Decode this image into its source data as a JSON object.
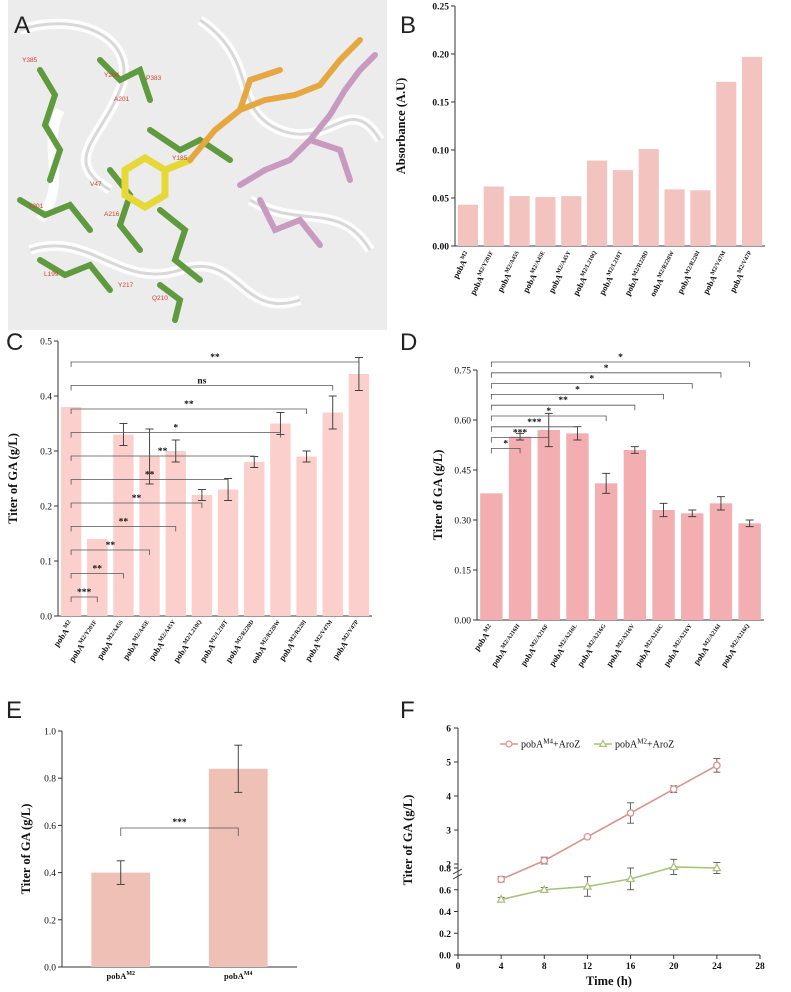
{
  "panels": {
    "A": {
      "label": "A",
      "residues": [
        "Y385",
        "Y204",
        "P383",
        "A201",
        "Y185",
        "V47",
        "Y201",
        "L199",
        "A216",
        "Q210",
        "Y217"
      ]
    },
    "B": {
      "label": "B"
    },
    "C": {
      "label": "C"
    },
    "D": {
      "label": "D"
    },
    "E": {
      "label": "E"
    },
    "F": {
      "label": "F"
    }
  },
  "chart_data": [
    {
      "panel": "B",
      "type": "bar",
      "ylabel": "Absorbance (A.U)",
      "ylim": [
        0,
        0.25
      ],
      "yticks": [
        "0.00",
        "0.05",
        "0.10",
        "0.15",
        "0.20",
        "0.25"
      ],
      "bar_color": "#f2c3bf",
      "categories": [
        {
          "base": "pobA",
          "sup": "M2"
        },
        {
          "base": "pobA",
          "sup": "M2/Y201F"
        },
        {
          "base": "pobA",
          "sup": "M2/A45S"
        },
        {
          "base": "pobA",
          "sup": "M2/A45E"
        },
        {
          "base": "pobA",
          "sup": "M2/A45Y"
        },
        {
          "base": "pobA",
          "sup": "M2/L210Q"
        },
        {
          "base": "pobA",
          "sup": "M2/L210T"
        },
        {
          "base": "pobA",
          "sup": "M2/R220D"
        },
        {
          "base": "oobA",
          "sup": "M2/R220W"
        },
        {
          "base": "pobA",
          "sup": "M2/R220I"
        },
        {
          "base": "pobA",
          "sup": "M2/V47M"
        },
        {
          "base": "pobA",
          "sup": "M2/V47P"
        }
      ],
      "values": [
        0.043,
        0.062,
        0.052,
        0.051,
        0.052,
        0.089,
        0.079,
        0.101,
        0.059,
        0.058,
        0.171,
        0.197
      ]
    },
    {
      "panel": "C",
      "type": "bar",
      "ylabel": "Titer of GA (g/L)",
      "ylim": [
        0,
        0.5
      ],
      "yticks": [
        "0.0",
        "0.1",
        "0.2",
        "0.3",
        "0.4",
        "0.5"
      ],
      "bar_color": "#fbd0cc",
      "categories": [
        {
          "base": "pobA",
          "sup": "M2"
        },
        {
          "base": "pobA",
          "sup": "M2/Y201F"
        },
        {
          "base": "pobA",
          "sup": "M2/A45S"
        },
        {
          "base": "pobA",
          "sup": "M2/A45E"
        },
        {
          "base": "pobA",
          "sup": "M2/A45Y"
        },
        {
          "base": "pobA",
          "sup": "M2/L210Q"
        },
        {
          "base": "pobA",
          "sup": "M2/L210T"
        },
        {
          "base": "pobA",
          "sup": "M2/R220D"
        },
        {
          "base": "oobA",
          "sup": "M2/R220W"
        },
        {
          "base": "pobA",
          "sup": "M2/R220I"
        },
        {
          "base": "pobA",
          "sup": "M2/V47M"
        },
        {
          "base": "pobA",
          "sup": "M2/V47P"
        }
      ],
      "values": [
        0.38,
        0.14,
        0.33,
        0.29,
        0.3,
        0.22,
        0.23,
        0.28,
        0.35,
        0.29,
        0.37,
        0.44
      ],
      "errors": [
        0,
        0,
        0.02,
        0.05,
        0.02,
        0.01,
        0.02,
        0.01,
        0.02,
        0.01,
        0.03,
        0.03
      ],
      "significance": [
        {
          "to": 11,
          "text": "**"
        },
        {
          "to": 10,
          "text": "ns"
        },
        {
          "to": 9,
          "text": "**"
        },
        {
          "to": 8,
          "text": "*"
        },
        {
          "to": 7,
          "text": "**"
        },
        {
          "to": 6,
          "text": "**"
        },
        {
          "to": 5,
          "text": "**"
        },
        {
          "to": 4,
          "text": "**"
        },
        {
          "to": 3,
          "text": "**"
        },
        {
          "to": 2,
          "text": "**"
        },
        {
          "to": 1,
          "text": "***"
        }
      ]
    },
    {
      "panel": "D",
      "type": "bar",
      "ylabel": "Titer of GA (g/L)",
      "ylim": [
        0,
        0.75
      ],
      "yticks": [
        "0.00",
        "0.15",
        "0.30",
        "0.45",
        "0.60",
        "0.75"
      ],
      "bar_color": "#f2aeb0",
      "categories": [
        {
          "base": "pobA",
          "sup": "M2"
        },
        {
          "base": "pobA",
          "sup": "M2/A216H"
        },
        {
          "base": "pobA",
          "sup": "M2/A216F"
        },
        {
          "base": "pobA",
          "sup": "M2/A216L"
        },
        {
          "base": "pobA",
          "sup": "M2/A216G"
        },
        {
          "base": "pobA",
          "sup": "M2/A216V"
        },
        {
          "base": "pobA",
          "sup": "M2/A216C"
        },
        {
          "base": "pobA",
          "sup": "M2/A216Y"
        },
        {
          "base": "pobA",
          "sup": "M2/A216I"
        },
        {
          "base": "pobA",
          "sup": "M2/A216Q"
        }
      ],
      "values": [
        0.38,
        0.55,
        0.57,
        0.56,
        0.41,
        0.51,
        0.33,
        0.32,
        0.35,
        0.29
      ],
      "errors": [
        0,
        0.01,
        0.05,
        0.02,
        0.03,
        0.01,
        0.02,
        0.01,
        0.02,
        0.01
      ],
      "significance": [
        {
          "to": 9,
          "text": "*"
        },
        {
          "to": 8,
          "text": "*"
        },
        {
          "to": 7,
          "text": "*"
        },
        {
          "to": 6,
          "text": "*"
        },
        {
          "to": 5,
          "text": "**"
        },
        {
          "to": 4,
          "text": "*"
        },
        {
          "to": 3,
          "text": "***"
        },
        {
          "to": 2,
          "text": "***"
        },
        {
          "to": 1,
          "text": "*"
        }
      ]
    },
    {
      "panel": "E",
      "type": "bar",
      "ylabel": "Titer of GA (g/L)",
      "ylim": [
        0,
        1.0
      ],
      "yticks": [
        "0.0",
        "0.2",
        "0.4",
        "0.6",
        "0.8",
        "1.0"
      ],
      "bar_color": "#eec0b6",
      "categories": [
        {
          "base": "pobA",
          "sup": "M2"
        },
        {
          "base": "pobA",
          "sup": "M4"
        }
      ],
      "values": [
        0.4,
        0.84
      ],
      "errors": [
        0.05,
        0.1
      ],
      "significance": [
        {
          "from": 0,
          "to": 1,
          "text": "***"
        }
      ]
    },
    {
      "panel": "F",
      "type": "line",
      "xlabel": "Time (h)",
      "ylabel": "Titer of GA (g/L)",
      "xlim": [
        0,
        28
      ],
      "xticks": [
        "0",
        "4",
        "8",
        "12",
        "16",
        "20",
        "24",
        "28"
      ],
      "y_upper_ticks": [
        "2",
        "3",
        "4",
        "5",
        "6"
      ],
      "y_lower_ticks": [
        "0.0",
        "0.2",
        "0.4",
        "0.6",
        "0.8"
      ],
      "axis_break": true,
      "series": [
        {
          "name": "pobA",
          "name_sup": "M4",
          "name_suffix": "+AroZ",
          "color": "#d9948f",
          "marker": "circle",
          "x": [
            4,
            8,
            12,
            16,
            20,
            24
          ],
          "y": [
            1.55,
            2.1,
            2.8,
            3.5,
            4.2,
            4.9
          ],
          "err": [
            0.08,
            0.1,
            0.04,
            0.3,
            0.1,
            0.2
          ]
        },
        {
          "name": "pobA",
          "name_sup": "M2",
          "name_suffix": "+AroZ",
          "color": "#a9c07a",
          "marker": "triangle",
          "x": [
            4,
            8,
            12,
            16,
            20,
            24
          ],
          "y": [
            0.51,
            0.6,
            0.63,
            0.7,
            0.81,
            0.8
          ],
          "err": [
            0.02,
            0.02,
            0.09,
            0.1,
            0.07,
            0.05
          ]
        }
      ]
    }
  ]
}
